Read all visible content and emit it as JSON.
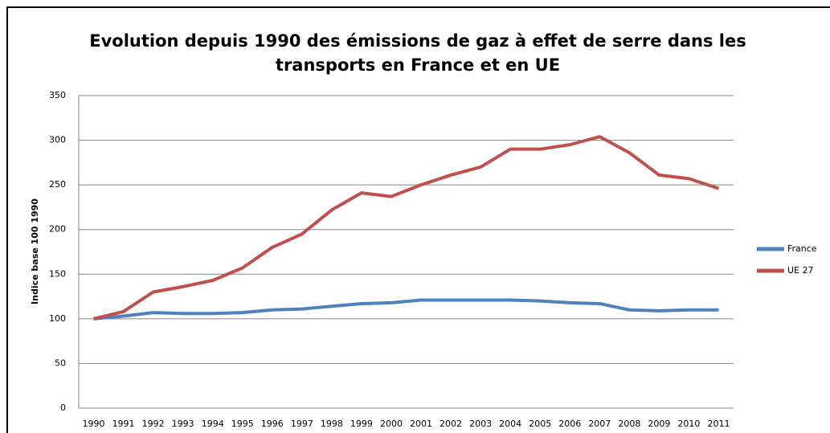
{
  "chart_data": {
    "type": "line",
    "title": "Evolution depuis 1990 des émissions de gaz à effet de serre dans les transports en France et en UE",
    "y_label": "Indice base 100 1990",
    "categories": [
      "1990",
      "1991",
      "1992",
      "1993",
      "1994",
      "1995",
      "1996",
      "1997",
      "1998",
      "1999",
      "2000",
      "2001",
      "2002",
      "2003",
      "2004",
      "2005",
      "2006",
      "2007",
      "2008",
      "2009",
      "2010",
      "2011"
    ],
    "series": [
      {
        "name": "France",
        "color": "#4f81bd",
        "values": [
          100,
          103,
          107,
          106,
          106,
          107,
          110,
          111,
          114,
          117,
          118,
          121,
          121,
          121,
          121,
          120,
          118,
          117,
          110,
          109,
          110,
          110
        ]
      },
      {
        "name": "UE 27",
        "color": "#c0504d",
        "values": [
          100,
          108,
          130,
          136,
          143,
          157,
          180,
          195,
          222,
          241,
          237,
          250,
          261,
          270,
          290,
          290,
          295,
          304,
          286,
          261,
          257,
          246
        ]
      }
    ],
    "ylim": [
      0,
      350
    ],
    "yticks": [
      0,
      50,
      100,
      150,
      200,
      250,
      300,
      350
    ],
    "grid": true,
    "legend": "right"
  }
}
